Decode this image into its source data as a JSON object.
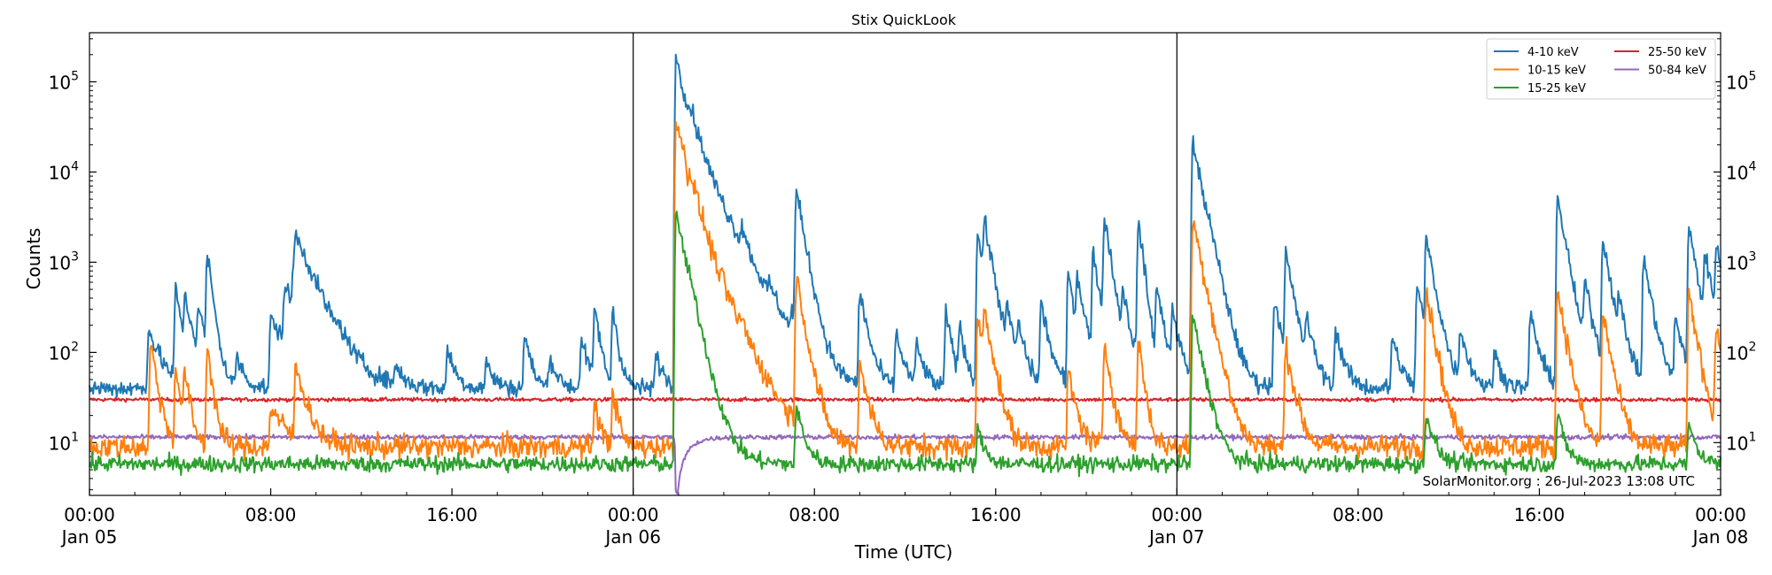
{
  "chart_data": {
    "type": "line",
    "title": "Stix QuickLook",
    "xlabel": "Time (UTC)",
    "ylabel": "Counts",
    "x_range_hours": [
      0,
      72
    ],
    "x_ticks": [
      {
        "hour": 0,
        "line1": "00:00",
        "line2": "Jan 05"
      },
      {
        "hour": 8,
        "line1": "08:00",
        "line2": ""
      },
      {
        "hour": 16,
        "line1": "16:00",
        "line2": ""
      },
      {
        "hour": 24,
        "line1": "00:00",
        "line2": "Jan 06"
      },
      {
        "hour": 32,
        "line1": "08:00",
        "line2": ""
      },
      {
        "hour": 40,
        "line1": "16:00",
        "line2": ""
      },
      {
        "hour": 48,
        "line1": "00:00",
        "line2": "Jan 07"
      },
      {
        "hour": 56,
        "line1": "08:00",
        "line2": ""
      },
      {
        "hour": 64,
        "line1": "16:00",
        "line2": ""
      },
      {
        "hour": 72,
        "line1": "00:00",
        "line2": "Jan 08"
      }
    ],
    "y_scale": "log",
    "ylim": [
      2.6,
      350000
    ],
    "y_ticks": [
      {
        "value": 10,
        "base": "10",
        "exp": "1"
      },
      {
        "value": 100,
        "base": "10",
        "exp": "2"
      },
      {
        "value": 1000,
        "base": "10",
        "exp": "3"
      },
      {
        "value": 10000,
        "base": "10",
        "exp": "4"
      },
      {
        "value": 100000,
        "base": "10",
        "exp": "5"
      }
    ],
    "day_dividers_hours": [
      24,
      48
    ],
    "legend_position": "top-right",
    "grid": false,
    "series": [
      {
        "name": "4-10 keV",
        "color": "#1f77b4",
        "baseline": 40,
        "noise": 0.1,
        "bumps": [
          [
            2.6,
            180,
            0.5
          ],
          [
            3.8,
            500,
            0.25
          ],
          [
            4.2,
            320,
            0.4
          ],
          [
            4.8,
            260,
            0.3
          ],
          [
            5.2,
            1200,
            0.2
          ],
          [
            6.5,
            90,
            0.3
          ],
          [
            8.0,
            240,
            0.8
          ],
          [
            8.6,
            450,
            0.7
          ],
          [
            9.0,
            700,
            0.9
          ],
          [
            9.1,
            1250,
            0.6
          ],
          [
            11.0,
            80,
            0.3
          ],
          [
            13.5,
            70,
            0.3
          ],
          [
            15.8,
            110,
            0.3
          ],
          [
            17.5,
            80,
            0.3
          ],
          [
            19.2,
            160,
            0.25
          ],
          [
            20.3,
            90,
            0.3
          ],
          [
            21.7,
            140,
            0.3
          ],
          [
            22.3,
            330,
            0.2
          ],
          [
            23.1,
            320,
            0.2
          ],
          [
            25.0,
            95,
            0.3
          ],
          [
            25.9,
            210000,
            0.35
          ],
          [
            26.5,
            20000,
            0.9
          ],
          [
            28.8,
            1150,
            0.2
          ],
          [
            30.0,
            190,
            0.3
          ],
          [
            31.0,
            180,
            0.3
          ],
          [
            31.2,
            6000,
            0.3
          ],
          [
            34.0,
            460,
            0.3
          ],
          [
            35.6,
            160,
            0.3
          ],
          [
            36.5,
            120,
            0.3
          ],
          [
            37.8,
            280,
            0.25
          ],
          [
            38.4,
            180,
            0.25
          ],
          [
            39.2,
            2100,
            0.3
          ],
          [
            39.5,
            2200,
            0.3
          ],
          [
            40.5,
            230,
            0.3
          ],
          [
            41.0,
            160,
            0.3
          ],
          [
            42.0,
            350,
            0.3
          ],
          [
            43.2,
            740,
            0.3
          ],
          [
            43.6,
            540,
            0.3
          ],
          [
            44.3,
            1300,
            0.25
          ],
          [
            44.8,
            3200,
            0.25
          ],
          [
            45.6,
            400,
            0.3
          ],
          [
            46.3,
            3000,
            0.2
          ],
          [
            47.1,
            480,
            0.3
          ],
          [
            47.8,
            250,
            0.3
          ],
          [
            48.7,
            21000,
            0.35
          ],
          [
            49.3,
            400,
            0.4
          ],
          [
            52.3,
            400,
            0.3
          ],
          [
            52.8,
            1200,
            0.3
          ],
          [
            53.7,
            200,
            0.3
          ],
          [
            55.0,
            180,
            0.3
          ],
          [
            57.5,
            150,
            0.3
          ],
          [
            58.6,
            550,
            0.3
          ],
          [
            59.0,
            1800,
            0.3
          ],
          [
            60.5,
            180,
            0.3
          ],
          [
            62.0,
            100,
            0.3
          ],
          [
            63.6,
            280,
            0.3
          ],
          [
            64.8,
            5300,
            0.3
          ],
          [
            66.0,
            560,
            0.3
          ],
          [
            66.8,
            1800,
            0.3
          ],
          [
            67.5,
            250,
            0.3
          ],
          [
            68.6,
            1100,
            0.3
          ],
          [
            70.0,
            250,
            0.3
          ],
          [
            70.6,
            2400,
            0.3
          ],
          [
            71.3,
            1100,
            0.3
          ],
          [
            71.8,
            1500,
            0.25
          ]
        ]
      },
      {
        "name": "10-15 keV",
        "color": "#ff7f0e",
        "baseline": 9,
        "noise": 0.13,
        "bumps": [
          [
            2.7,
            130,
            0.25
          ],
          [
            3.8,
            70,
            0.2
          ],
          [
            4.2,
            60,
            0.2
          ],
          [
            5.2,
            120,
            0.2
          ],
          [
            8.0,
            25,
            0.6
          ],
          [
            9.1,
            70,
            0.4
          ],
          [
            22.3,
            30,
            0.2
          ],
          [
            23.1,
            40,
            0.2
          ],
          [
            25.9,
            42000,
            0.35
          ],
          [
            26.5,
            3000,
            0.8
          ],
          [
            28.8,
            60,
            0.2
          ],
          [
            31.2,
            700,
            0.3
          ],
          [
            34.0,
            80,
            0.3
          ],
          [
            39.2,
            250,
            0.3
          ],
          [
            39.5,
            230,
            0.3
          ],
          [
            43.2,
            60,
            0.3
          ],
          [
            44.8,
            130,
            0.25
          ],
          [
            46.3,
            150,
            0.2
          ],
          [
            48.7,
            3000,
            0.35
          ],
          [
            52.8,
            120,
            0.3
          ],
          [
            59.0,
            500,
            0.3
          ],
          [
            64.8,
            500,
            0.3
          ],
          [
            66.8,
            280,
            0.3
          ],
          [
            70.6,
            450,
            0.3
          ],
          [
            71.8,
            200,
            0.25
          ]
        ]
      },
      {
        "name": "15-25 keV",
        "color": "#2ca02c",
        "baseline": 5.8,
        "noise": 0.09,
        "bumps": [
          [
            25.9,
            3500,
            0.35
          ],
          [
            26.5,
            80,
            0.6
          ],
          [
            31.2,
            25,
            0.3
          ],
          [
            39.2,
            14,
            0.3
          ],
          [
            48.7,
            250,
            0.35
          ],
          [
            59.0,
            22,
            0.3
          ],
          [
            64.8,
            20,
            0.3
          ],
          [
            70.6,
            16,
            0.3
          ]
        ]
      },
      {
        "name": "25-50 keV",
        "color": "#d62728",
        "baseline": 30,
        "noise": 0.02,
        "bumps": []
      },
      {
        "name": "50-84 keV",
        "color": "#9467bd",
        "baseline": 11.5,
        "noise": 0.025,
        "bumps": [
          [
            25.9,
            1.5,
            0.5
          ]
        ]
      }
    ]
  },
  "annotation": "SolarMonitor.org : 26-Jul-2023 13:08 UTC"
}
